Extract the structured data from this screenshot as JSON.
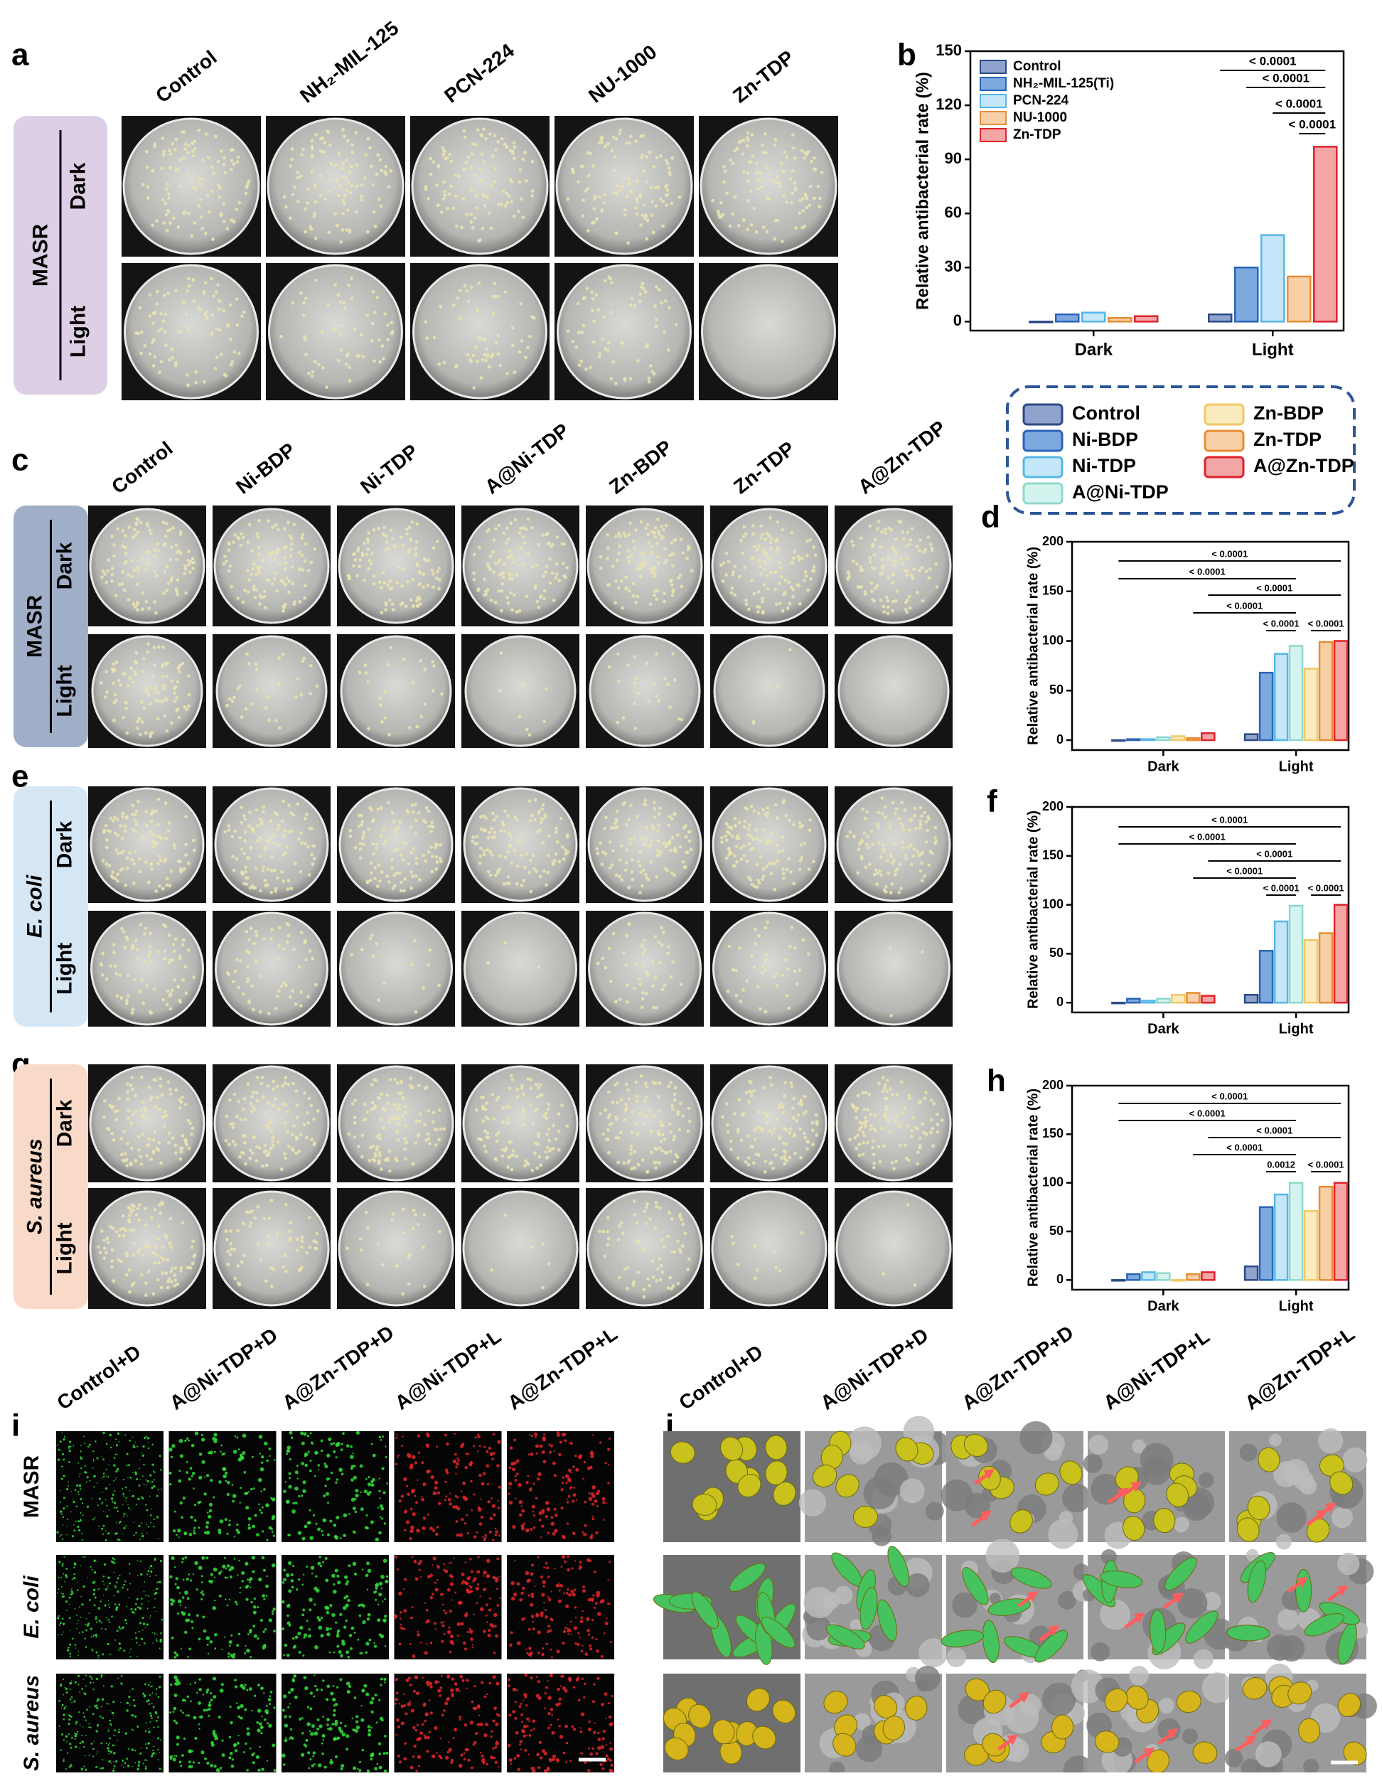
{
  "panel_a": {
    "label": "a",
    "columns": [
      "Control",
      "NH₂-MIL-125",
      "PCN-224",
      "NU-1000",
      "Zn-TDP"
    ],
    "group": "MASR",
    "rows": [
      "Dark",
      "Light"
    ]
  },
  "panel_c": {
    "label": "c",
    "columns": [
      "Control",
      "Ni-BDP",
      "Ni-TDP",
      "A@Ni-TDP",
      "Zn-BDP",
      "Zn-TDP",
      "A@Zn-TDP"
    ],
    "group": "MASR",
    "rows": [
      "Dark",
      "Light"
    ]
  },
  "panel_e": {
    "label": "e",
    "group": "E. coli",
    "rows": [
      "Dark",
      "Light"
    ]
  },
  "panel_g": {
    "label": "g",
    "group": "S. aureus",
    "rows": [
      "Dark",
      "Light"
    ]
  },
  "panel_i": {
    "label": "i",
    "columns": [
      "Control+D",
      "A@Ni-TDP+D",
      "A@Zn-TDP+D",
      "A@Ni-TDP+L",
      "A@Zn-TDP+L"
    ],
    "rows": [
      "MASR",
      "E. coli",
      "S. aureus"
    ]
  },
  "panel_j": {
    "label": "j",
    "columns": [
      "Control+D",
      "A@Ni-TDP+D",
      "A@Zn-TDP+D",
      "A@Ni-TDP+L",
      "A@Zn-TDP+L"
    ]
  },
  "chart_data": [
    {
      "type": "bar",
      "label": "b",
      "y_label": "Relative antibacterial rate (%)",
      "categories": [
        "Dark",
        "Light"
      ],
      "series": [
        {
          "name": "Control",
          "color": "#8fa3cc",
          "edge_color": "#2b4a86",
          "values": [
            0,
            4
          ]
        },
        {
          "name": "NH₂-MIL-125(Ti)",
          "color": "#7ea9de",
          "edge_color": "#2b63b8",
          "values": [
            4,
            30
          ]
        },
        {
          "name": "PCN-224",
          "color": "#c3e6f8",
          "edge_color": "#56b7e6",
          "values": [
            5,
            48
          ]
        },
        {
          "name": "NU-1000",
          "color": "#f8d0a8",
          "edge_color": "#e88d33",
          "values": [
            2,
            25
          ]
        },
        {
          "name": "Zn-TDP",
          "color": "#f4a6a6",
          "edge_color": "#e0222b",
          "values": [
            3,
            97
          ]
        }
      ],
      "ylim": [
        -5,
        150
      ],
      "yticks": [
        0,
        30,
        60,
        90,
        120,
        150
      ],
      "legend": "upper left",
      "annotations": [
        "< 0.0001",
        "< 0.0001",
        "< 0.0001",
        "< 0.0001"
      ]
    },
    {
      "type": "bar",
      "label": "d",
      "y_label": "Relative antibacterial rate (%)",
      "categories": [
        "Dark",
        "Light"
      ],
      "series": [
        {
          "name": "Control",
          "color": "#8fa3cc",
          "edge_color": "#2b4a86",
          "values": [
            0,
            6
          ]
        },
        {
          "name": "Ni-BDP",
          "color": "#7ea9de",
          "edge_color": "#2b63b8",
          "values": [
            1,
            68
          ]
        },
        {
          "name": "Ni-TDP",
          "color": "#c3e6f8",
          "edge_color": "#56b7e6",
          "values": [
            1,
            87
          ]
        },
        {
          "name": "A@Ni-TDP",
          "color": "#d5f3ee",
          "edge_color": "#8fd8cc",
          "values": [
            3,
            95
          ]
        },
        {
          "name": "Zn-BDP",
          "color": "#fbecc0",
          "edge_color": "#f1c865",
          "values": [
            4,
            72
          ]
        },
        {
          "name": "Zn-TDP",
          "color": "#f8d0a8",
          "edge_color": "#e88d33",
          "values": [
            2,
            99
          ]
        },
        {
          "name": "A@Zn-TDP",
          "color": "#f4a6a6",
          "edge_color": "#e0222b",
          "values": [
            7,
            100
          ]
        }
      ],
      "ylim": [
        -10,
        200
      ],
      "yticks": [
        0,
        50,
        100,
        150,
        200
      ],
      "legend": "box above",
      "annotations": [
        "< 0.0001",
        "< 0.0001",
        "< 0.0001",
        "< 0.0001",
        "< 0.0001",
        "< 0.0001"
      ]
    },
    {
      "type": "bar",
      "label": "f",
      "y_label": "Relative antibacterial rate (%)",
      "categories": [
        "Dark",
        "Light"
      ],
      "series": [
        {
          "name": "Control",
          "color": "#8fa3cc",
          "edge_color": "#2b4a86",
          "values": [
            0,
            8
          ]
        },
        {
          "name": "Ni-BDP",
          "color": "#7ea9de",
          "edge_color": "#2b63b8",
          "values": [
            4,
            53
          ]
        },
        {
          "name": "Ni-TDP",
          "color": "#c3e6f8",
          "edge_color": "#56b7e6",
          "values": [
            2,
            83
          ]
        },
        {
          "name": "A@Ni-TDP",
          "color": "#d5f3ee",
          "edge_color": "#8fd8cc",
          "values": [
            4,
            99
          ]
        },
        {
          "name": "Zn-BDP",
          "color": "#fbecc0",
          "edge_color": "#f1c865",
          "values": [
            8,
            64
          ]
        },
        {
          "name": "Zn-TDP",
          "color": "#f8d0a8",
          "edge_color": "#e88d33",
          "values": [
            10,
            71
          ]
        },
        {
          "name": "A@Zn-TDP",
          "color": "#f4a6a6",
          "edge_color": "#e0222b",
          "values": [
            7,
            100
          ]
        }
      ],
      "ylim": [
        -10,
        200
      ],
      "yticks": [
        0,
        50,
        100,
        150,
        200
      ],
      "annotations": [
        "< 0.0001",
        "< 0.0001",
        "< 0.0001",
        "< 0.0001",
        "< 0.0001",
        "< 0.0001"
      ]
    },
    {
      "type": "bar",
      "label": "h",
      "y_label": "Relative antibacterial rate (%)",
      "categories": [
        "Dark",
        "Light"
      ],
      "series": [
        {
          "name": "Control",
          "color": "#8fa3cc",
          "edge_color": "#2b4a86",
          "values": [
            0,
            14
          ]
        },
        {
          "name": "Ni-BDP",
          "color": "#7ea9de",
          "edge_color": "#2b63b8",
          "values": [
            6,
            75
          ]
        },
        {
          "name": "Ni-TDP",
          "color": "#c3e6f8",
          "edge_color": "#56b7e6",
          "values": [
            8,
            88
          ]
        },
        {
          "name": "A@Ni-TDP",
          "color": "#d5f3ee",
          "edge_color": "#8fd8cc",
          "values": [
            7,
            100
          ]
        },
        {
          "name": "Zn-BDP",
          "color": "#fbecc0",
          "edge_color": "#f1c865",
          "values": [
            0,
            71
          ]
        },
        {
          "name": "Zn-TDP",
          "color": "#f8d0a8",
          "edge_color": "#e88d33",
          "values": [
            6,
            96
          ]
        },
        {
          "name": "A@Zn-TDP",
          "color": "#f4a6a6",
          "edge_color": "#e0222b",
          "values": [
            8,
            100
          ]
        }
      ],
      "ylim": [
        -10,
        200
      ],
      "yticks": [
        0,
        50,
        100,
        150,
        200
      ],
      "annotations": [
        "< 0.0001",
        "< 0.0001",
        "< 0.0001",
        "< 0.0001",
        "0.0012",
        "< 0.0001"
      ]
    }
  ]
}
